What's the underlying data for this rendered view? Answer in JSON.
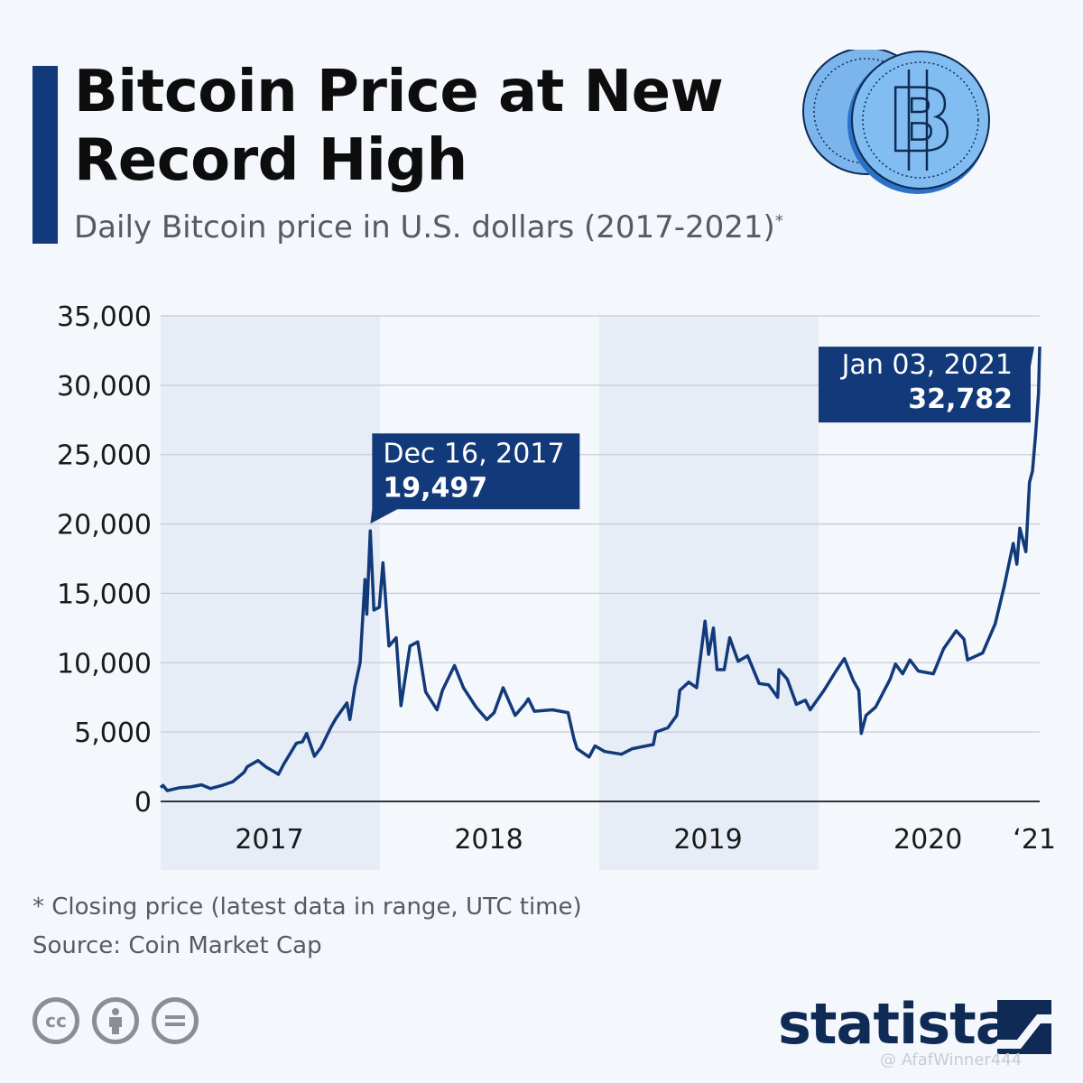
{
  "header": {
    "title": "Bitcoin Price at New Record High",
    "subtitle": "Daily Bitcoin price in U.S. dollars (2017-2021)",
    "subtitle_marker": "*"
  },
  "footer": {
    "footnote": "* Closing price (latest data in range, UTC time)",
    "source": "Source: Coin Market Cap",
    "brand": "statista",
    "watermark": "@ AfafWinner444"
  },
  "icons": [
    "bitcoin-coin-icon",
    "cc-icon",
    "cc-by-icon",
    "cc-nd-icon",
    "statista-logo-icon"
  ],
  "colors": {
    "accent": "#123a7a",
    "line": "#123a7a",
    "shade": "#e7edf6",
    "grid": "#c7ccd3"
  },
  "chart_data": {
    "type": "line",
    "title": "Bitcoin Price at New Record High",
    "ylim": [
      0,
      35000
    ],
    "xlim": [
      "2017-01-01",
      "2021-01-03"
    ],
    "y_ticks": [
      0,
      5000,
      10000,
      15000,
      20000,
      25000,
      30000,
      35000
    ],
    "y_tick_labels": [
      "0",
      "5,000",
      "10,000",
      "15,000",
      "20,000",
      "25,000",
      "30,000",
      "35,000"
    ],
    "x_labels": [
      {
        "label": "2017",
        "at": "2017-07-01"
      },
      {
        "label": "2018",
        "at": "2018-07-01"
      },
      {
        "label": "2019",
        "at": "2019-07-01"
      },
      {
        "label": "2020",
        "at": "2020-07-01"
      },
      {
        "label": "‘21",
        "at": "2021-01-03"
      }
    ],
    "shaded_years": [
      {
        "from": "2017-01-01",
        "to": "2018-01-01"
      },
      {
        "from": "2019-01-01",
        "to": "2020-01-01"
      }
    ],
    "grid": true,
    "series": [
      {
        "points": [
          [
            "2017-01-01",
            1000
          ],
          [
            "2017-01-05",
            1150
          ],
          [
            "2017-01-12",
            780
          ],
          [
            "2017-02-01",
            980
          ],
          [
            "2017-02-20",
            1050
          ],
          [
            "2017-03-10",
            1200
          ],
          [
            "2017-03-25",
            930
          ],
          [
            "2017-04-15",
            1180
          ],
          [
            "2017-05-01",
            1420
          ],
          [
            "2017-05-20",
            2100
          ],
          [
            "2017-05-25",
            2500
          ],
          [
            "2017-06-12",
            2950
          ],
          [
            "2017-06-25",
            2500
          ],
          [
            "2017-07-16",
            1950
          ],
          [
            "2017-07-25",
            2700
          ],
          [
            "2017-08-15",
            4200
          ],
          [
            "2017-08-25",
            4300
          ],
          [
            "2017-09-01",
            4900
          ],
          [
            "2017-09-14",
            3250
          ],
          [
            "2017-09-25",
            3900
          ],
          [
            "2017-10-12",
            5400
          ],
          [
            "2017-10-20",
            6000
          ],
          [
            "2017-11-07",
            7100
          ],
          [
            "2017-11-12",
            5900
          ],
          [
            "2017-11-20",
            8200
          ],
          [
            "2017-11-29",
            10000
          ],
          [
            "2017-12-07",
            16000
          ],
          [
            "2017-12-10",
            13500
          ],
          [
            "2017-12-16",
            19497
          ],
          [
            "2017-12-22",
            13800
          ],
          [
            "2017-12-31",
            14000
          ],
          [
            "2018-01-06",
            17200
          ],
          [
            "2018-01-16",
            11200
          ],
          [
            "2018-01-28",
            11800
          ],
          [
            "2018-02-05",
            6900
          ],
          [
            "2018-02-20",
            11200
          ],
          [
            "2018-03-05",
            11500
          ],
          [
            "2018-03-18",
            7900
          ],
          [
            "2018-04-06",
            6600
          ],
          [
            "2018-04-15",
            8000
          ],
          [
            "2018-05-05",
            9800
          ],
          [
            "2018-05-20",
            8200
          ],
          [
            "2018-06-10",
            6800
          ],
          [
            "2018-06-28",
            5900
          ],
          [
            "2018-07-10",
            6400
          ],
          [
            "2018-07-25",
            8200
          ],
          [
            "2018-08-14",
            6200
          ],
          [
            "2018-08-30",
            7000
          ],
          [
            "2018-09-05",
            7400
          ],
          [
            "2018-09-15",
            6500
          ],
          [
            "2018-10-15",
            6600
          ],
          [
            "2018-11-10",
            6400
          ],
          [
            "2018-11-20",
            4500
          ],
          [
            "2018-11-25",
            3800
          ],
          [
            "2018-12-15",
            3200
          ],
          [
            "2018-12-25",
            4000
          ],
          [
            "2019-01-10",
            3600
          ],
          [
            "2019-02-07",
            3400
          ],
          [
            "2019-02-25",
            3800
          ],
          [
            "2019-03-20",
            4000
          ],
          [
            "2019-04-01",
            4100
          ],
          [
            "2019-04-05",
            5000
          ],
          [
            "2019-04-25",
            5300
          ],
          [
            "2019-05-10",
            6200
          ],
          [
            "2019-05-15",
            8000
          ],
          [
            "2019-05-30",
            8600
          ],
          [
            "2019-06-12",
            8200
          ],
          [
            "2019-06-26",
            13000
          ],
          [
            "2019-07-02",
            10600
          ],
          [
            "2019-07-10",
            12500
          ],
          [
            "2019-07-16",
            9500
          ],
          [
            "2019-07-28",
            9500
          ],
          [
            "2019-08-06",
            11800
          ],
          [
            "2019-08-20",
            10100
          ],
          [
            "2019-09-05",
            10500
          ],
          [
            "2019-09-24",
            8500
          ],
          [
            "2019-10-10",
            8400
          ],
          [
            "2019-10-25",
            7500
          ],
          [
            "2019-10-27",
            9500
          ],
          [
            "2019-11-10",
            8800
          ],
          [
            "2019-11-25",
            7000
          ],
          [
            "2019-12-10",
            7300
          ],
          [
            "2019-12-18",
            6600
          ],
          [
            "2020-01-10",
            8000
          ],
          [
            "2020-01-30",
            9400
          ],
          [
            "2020-02-13",
            10300
          ],
          [
            "2020-02-28",
            8700
          ],
          [
            "2020-03-08",
            8000
          ],
          [
            "2020-03-12",
            4900
          ],
          [
            "2020-03-20",
            6200
          ],
          [
            "2020-04-05",
            6800
          ],
          [
            "2020-04-29",
            8800
          ],
          [
            "2020-05-08",
            9900
          ],
          [
            "2020-05-20",
            9200
          ],
          [
            "2020-06-01",
            10200
          ],
          [
            "2020-06-15",
            9400
          ],
          [
            "2020-07-10",
            9200
          ],
          [
            "2020-07-27",
            11000
          ],
          [
            "2020-08-17",
            12300
          ],
          [
            "2020-08-30",
            11700
          ],
          [
            "2020-09-05",
            10200
          ],
          [
            "2020-09-30",
            10700
          ],
          [
            "2020-10-21",
            12800
          ],
          [
            "2020-11-05",
            15500
          ],
          [
            "2020-11-20",
            18600
          ],
          [
            "2020-11-26",
            17100
          ],
          [
            "2020-12-01",
            19700
          ],
          [
            "2020-12-11",
            18000
          ],
          [
            "2020-12-17",
            23000
          ],
          [
            "2020-12-22",
            23800
          ],
          [
            "2020-12-27",
            26300
          ],
          [
            "2021-01-01",
            29400
          ],
          [
            "2021-01-03",
            32782
          ]
        ]
      }
    ],
    "annotations": [
      {
        "date_label": "Dec 16, 2017",
        "value_label": "19,497",
        "x": "2017-12-16",
        "y": 19497
      },
      {
        "date_label": "Jan 03, 2021",
        "value_label": "32,782",
        "x": "2021-01-03",
        "y": 32782
      }
    ]
  }
}
